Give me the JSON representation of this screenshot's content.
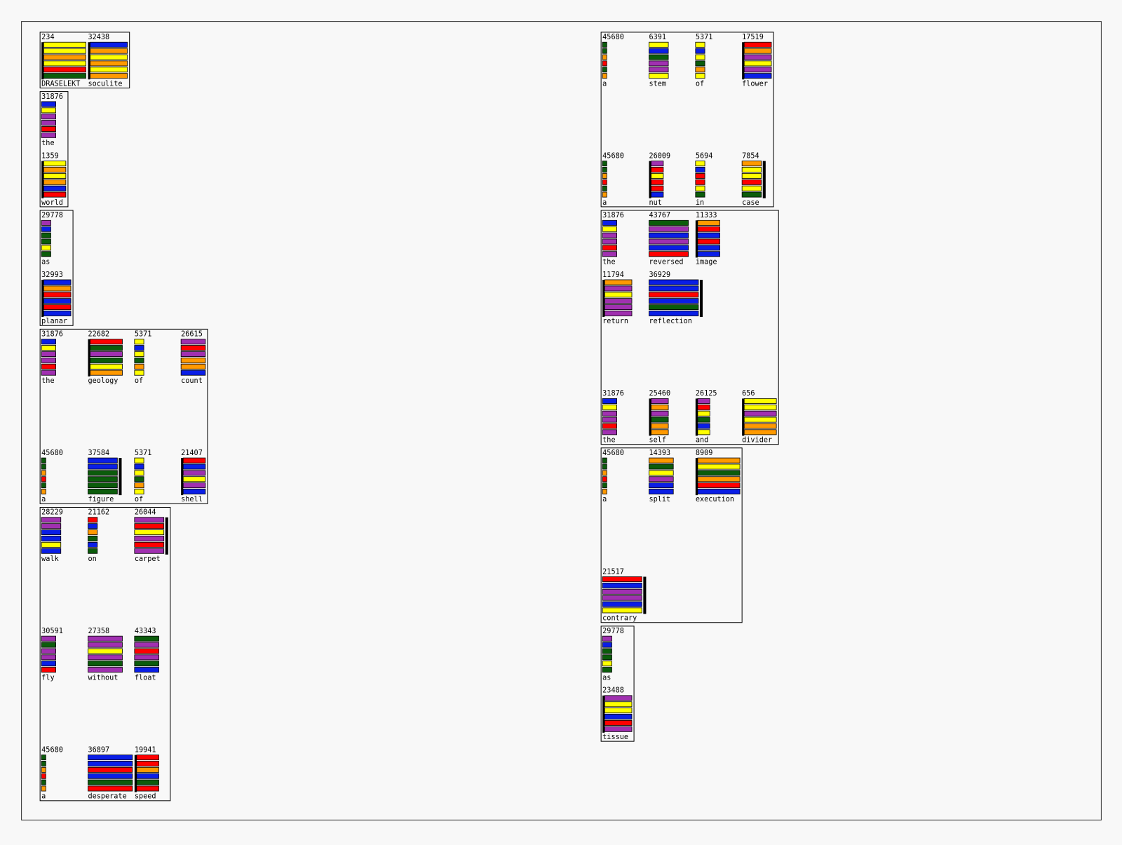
{
  "palette": {
    "yellow": "#ffff00",
    "orange": "#ff9900",
    "red": "#ff0000",
    "green": "#0b5c0b",
    "blue": "#0a1ee6",
    "purple": "#a030b0",
    "black": "#000000"
  },
  "columns": [
    [
      {
        "rows": [
          [
            {
              "count": "234",
              "word": "DRASELEKT",
              "mark": "left",
              "bars": [
                "yellow",
                "yellow",
                "orange",
                "yellow",
                "red",
                "green"
              ]
            },
            {
              "count": "32438",
              "word": "soculite",
              "mark": "left",
              "bars": [
                "blue",
                "orange",
                "yellow",
                "orange",
                "yellow",
                "orange"
              ]
            }
          ]
        ]
      },
      {
        "rows": [
          [
            {
              "count": "31876",
              "word": "the",
              "bars": [
                "blue",
                "yellow",
                "purple",
                "purple",
                "red",
                "purple"
              ]
            }
          ],
          [
            {
              "count": "1359",
              "word": "world",
              "mark": "left",
              "bars": [
                "yellow",
                "orange",
                "yellow",
                "orange",
                "blue",
                "red"
              ]
            }
          ]
        ]
      },
      {
        "rows": [
          [
            {
              "count": "29778",
              "word": "as",
              "bars": [
                "purple",
                "blue",
                "green",
                "green",
                "yellow",
                "green"
              ]
            }
          ],
          [
            {
              "count": "32993",
              "word": "planar",
              "mark": "left",
              "bars": [
                "blue",
                "orange",
                "red",
                "blue",
                "red",
                "blue"
              ]
            }
          ]
        ]
      },
      {
        "rows": [
          [
            {
              "count": "31876",
              "word": "the",
              "bars": [
                "blue",
                "yellow",
                "purple",
                "purple",
                "red",
                "purple"
              ]
            },
            {
              "count": "22682",
              "word": "geology",
              "mark": "left",
              "bars": [
                "red",
                "green",
                "purple",
                "green",
                "yellow",
                "orange"
              ]
            },
            {
              "count": "5371",
              "word": "of",
              "bars": [
                "yellow",
                "blue",
                "yellow",
                "green",
                "orange",
                "yellow"
              ]
            },
            {
              "count": "26615",
              "word": "count",
              "bars": [
                "purple",
                "red",
                "purple",
                "orange",
                "orange",
                "blue"
              ]
            }
          ],
          [],
          [
            {
              "count": "45680",
              "word": "a",
              "bars": [
                "green",
                "green",
                "orange",
                "red",
                "green",
                "orange"
              ]
            },
            {
              "count": "37584",
              "word": "figure",
              "mark": "right",
              "bars": [
                "blue",
                "blue",
                "green",
                "green",
                "green",
                "green"
              ]
            },
            {
              "count": "5371",
              "word": "of",
              "bars": [
                "yellow",
                "blue",
                "yellow",
                "green",
                "orange",
                "yellow"
              ]
            },
            {
              "count": "21407",
              "word": "shell",
              "mark": "left",
              "bars": [
                "red",
                "blue",
                "purple",
                "yellow",
                "purple",
                "blue"
              ]
            }
          ]
        ]
      },
      {
        "rows": [
          [
            {
              "count": "28229",
              "word": "walk",
              "bars": [
                "purple",
                "purple",
                "blue",
                "blue",
                "yellow",
                "blue"
              ]
            },
            {
              "count": "21162",
              "word": "on",
              "bars": [
                "red",
                "blue",
                "orange",
                "green",
                "blue",
                "green"
              ]
            },
            {
              "count": "26044",
              "word": "carpet",
              "mark": "right",
              "bars": [
                "purple",
                "red",
                "yellow",
                "purple",
                "red",
                "purple"
              ]
            }
          ],
          [],
          [
            {
              "count": "30591",
              "word": "fly",
              "bars": [
                "purple",
                "green",
                "purple",
                "purple",
                "blue",
                "red"
              ]
            },
            {
              "count": "27358",
              "word": "without",
              "bars": [
                "purple",
                "purple",
                "yellow",
                "purple",
                "green",
                "purple"
              ]
            },
            {
              "count": "43343",
              "word": "float",
              "bars": [
                "green",
                "purple",
                "red",
                "purple",
                "green",
                "blue"
              ]
            }
          ],
          [],
          [
            {
              "count": "45680",
              "word": "a",
              "bars": [
                "green",
                "green",
                "orange",
                "red",
                "green",
                "orange"
              ]
            },
            {
              "count": "36897",
              "word": "desperate",
              "bars": [
                "blue",
                "blue",
                "red",
                "blue",
                "green",
                "red"
              ]
            },
            {
              "count": "19941",
              "word": "speed",
              "mark": "left",
              "bars": [
                "red",
                "red",
                "orange",
                "blue",
                "green",
                "red"
              ]
            }
          ]
        ]
      }
    ],
    [
      {
        "rows": [
          [
            {
              "count": "45680",
              "word": "a",
              "bars": [
                "green",
                "green",
                "orange",
                "red",
                "green",
                "orange"
              ]
            },
            {
              "count": "6391",
              "word": "stem",
              "bars": [
                "yellow",
                "blue",
                "green",
                "purple",
                "purple",
                "yellow"
              ]
            },
            {
              "count": "5371",
              "word": "of",
              "bars": [
                "yellow",
                "blue",
                "yellow",
                "green",
                "orange",
                "yellow"
              ]
            },
            {
              "count": "17519",
              "word": "flower",
              "mark": "left",
              "bars": [
                "red",
                "orange",
                "purple",
                "yellow",
                "purple",
                "blue"
              ]
            }
          ],
          [],
          [
            {
              "count": "45680",
              "word": "a",
              "bars": [
                "green",
                "green",
                "orange",
                "red",
                "green",
                "orange"
              ]
            },
            {
              "count": "26009",
              "word": "nut",
              "mark": "left",
              "bars": [
                "purple",
                "red",
                "yellow",
                "red",
                "red",
                "blue"
              ]
            },
            {
              "count": "5694",
              "word": "in",
              "bars": [
                "yellow",
                "blue",
                "red",
                "red",
                "yellow",
                "green"
              ]
            },
            {
              "count": "7854",
              "word": "case",
              "mark": "right",
              "bars": [
                "orange",
                "yellow",
                "yellow",
                "red",
                "yellow",
                "green"
              ]
            }
          ]
        ]
      },
      {
        "rows": [
          [
            {
              "count": "31876",
              "word": "the",
              "bars": [
                "blue",
                "yellow",
                "purple",
                "purple",
                "red",
                "purple"
              ]
            },
            {
              "count": "43767",
              "word": "reversed",
              "bars": [
                "green",
                "purple",
                "blue",
                "purple",
                "blue",
                "red"
              ]
            },
            {
              "count": "11333",
              "word": "image",
              "mark": "left",
              "bars": [
                "orange",
                "red",
                "blue",
                "red",
                "blue",
                "blue"
              ]
            }
          ],
          [
            {
              "count": "11794",
              "word": "return",
              "mark": "left",
              "bars": [
                "orange",
                "purple",
                "yellow",
                "purple",
                "purple",
                "purple"
              ]
            },
            {
              "count": "36929",
              "word": "reflection",
              "mark": "right",
              "bars": [
                "blue",
                "blue",
                "red",
                "blue",
                "green",
                "blue"
              ]
            }
          ],
          [],
          [
            {
              "count": "31876",
              "word": "the",
              "bars": [
                "blue",
                "yellow",
                "purple",
                "purple",
                "red",
                "purple"
              ]
            },
            {
              "count": "25460",
              "word": "self",
              "mark": "left",
              "bars": [
                "purple",
                "orange",
                "purple",
                "green",
                "orange",
                "orange"
              ]
            },
            {
              "count": "26125",
              "word": "and",
              "mark": "left",
              "bars": [
                "purple",
                "red",
                "yellow",
                "green",
                "blue",
                "yellow"
              ]
            },
            {
              "count": "656",
              "word": "divider",
              "mark": "left",
              "bars": [
                "yellow",
                "yellow",
                "purple",
                "yellow",
                "orange",
                "orange"
              ]
            }
          ]
        ]
      },
      {
        "rows": [
          [
            {
              "count": "45680",
              "word": "a",
              "bars": [
                "green",
                "green",
                "orange",
                "red",
                "green",
                "orange"
              ]
            },
            {
              "count": "14393",
              "word": "split",
              "bars": [
                "orange",
                "green",
                "yellow",
                "purple",
                "blue",
                "blue"
              ]
            },
            {
              "count": "8909",
              "word": "execution",
              "mark": "left",
              "bars": [
                "orange",
                "yellow",
                "green",
                "orange",
                "red",
                "blue"
              ]
            }
          ],
          [],
          [
            {
              "count": "21517",
              "word": "contrary",
              "mark": "right",
              "bars": [
                "red",
                "blue",
                "purple",
                "purple",
                "blue",
                "yellow"
              ]
            }
          ]
        ]
      },
      {
        "rows": [
          [
            {
              "count": "29778",
              "word": "as",
              "bars": [
                "purple",
                "blue",
                "green",
                "green",
                "yellow",
                "green"
              ]
            }
          ],
          [
            {
              "count": "23488",
              "word": "tissue",
              "mark": "left",
              "bars": [
                "purple",
                "yellow",
                "yellow",
                "blue",
                "red",
                "purple"
              ]
            }
          ]
        ]
      }
    ]
  ]
}
